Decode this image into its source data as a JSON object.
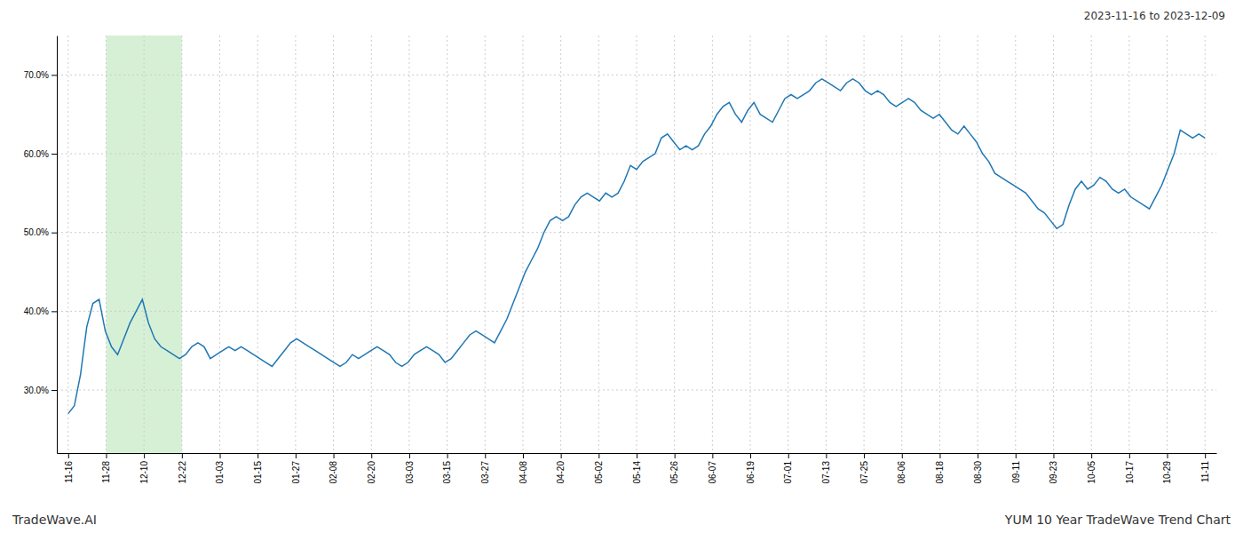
{
  "chart_data": {
    "type": "line",
    "title": "YUM 10 Year TradeWave Trend Chart",
    "subtitle": "2023-11-16 to 2023-12-09",
    "annotations": [
      "TradeWave.AI"
    ],
    "color": "#1f77b4",
    "grid": true,
    "xlim": [
      -0.3,
      30.3
    ],
    "xticks": [
      {
        "value": 0,
        "label": "11-16"
      },
      {
        "value": 1,
        "label": "11-28"
      },
      {
        "value": 2,
        "label": "12-10"
      },
      {
        "value": 3,
        "label": "12-22"
      },
      {
        "value": 4,
        "label": "01-03"
      },
      {
        "value": 5,
        "label": "01-15"
      },
      {
        "value": 6,
        "label": "01-27"
      },
      {
        "value": 7,
        "label": "02-08"
      },
      {
        "value": 8,
        "label": "02-20"
      },
      {
        "value": 9,
        "label": "03-03"
      },
      {
        "value": 10,
        "label": "03-15"
      },
      {
        "value": 11,
        "label": "03-27"
      },
      {
        "value": 12,
        "label": "04-08"
      },
      {
        "value": 13,
        "label": "04-20"
      },
      {
        "value": 14,
        "label": "05-02"
      },
      {
        "value": 15,
        "label": "05-14"
      },
      {
        "value": 16,
        "label": "05-26"
      },
      {
        "value": 17,
        "label": "06-07"
      },
      {
        "value": 18,
        "label": "06-19"
      },
      {
        "value": 19,
        "label": "07-01"
      },
      {
        "value": 20,
        "label": "07-13"
      },
      {
        "value": 21,
        "label": "07-25"
      },
      {
        "value": 22,
        "label": "08-06"
      },
      {
        "value": 23,
        "label": "08-18"
      },
      {
        "value": 24,
        "label": "08-30"
      },
      {
        "value": 25,
        "label": "09-11"
      },
      {
        "value": 26,
        "label": "09-23"
      },
      {
        "value": 27,
        "label": "10-05"
      },
      {
        "value": 28,
        "label": "10-17"
      },
      {
        "value": 29,
        "label": "10-29"
      },
      {
        "value": 30,
        "label": "11-11"
      }
    ],
    "ylim": [
      22,
      75
    ],
    "yticks": [
      {
        "value": 30,
        "label": "30.0%"
      },
      {
        "value": 40,
        "label": "40.0%"
      },
      {
        "value": 50,
        "label": "50.0%"
      },
      {
        "value": 60,
        "label": "60.0%"
      },
      {
        "value": 70,
        "label": "70.0%"
      }
    ],
    "spans": [
      {
        "x0": 1,
        "x1": 3,
        "color": "#d6f0d6"
      }
    ],
    "values": [
      27.0,
      28.0,
      32.0,
      38.0,
      41.0,
      41.5,
      37.5,
      35.5,
      34.5,
      36.5,
      38.5,
      40.0,
      41.5,
      38.5,
      36.5,
      35.5,
      35.0,
      34.5,
      34.0,
      34.5,
      35.5,
      36.0,
      35.5,
      34.0,
      34.5,
      35.0,
      35.5,
      35.0,
      35.5,
      35.0,
      34.5,
      34.0,
      33.5,
      33.0,
      34.0,
      35.0,
      36.0,
      36.5,
      36.0,
      35.5,
      35.0,
      34.5,
      34.0,
      33.5,
      33.0,
      33.5,
      34.5,
      34.0,
      34.5,
      35.0,
      35.5,
      35.0,
      34.5,
      33.5,
      33.0,
      33.5,
      34.5,
      35.0,
      35.5,
      35.0,
      34.5,
      33.5,
      34.0,
      35.0,
      36.0,
      37.0,
      37.5,
      37.0,
      36.5,
      36.0,
      37.5,
      39.0,
      41.0,
      43.0,
      45.0,
      46.5,
      48.0,
      50.0,
      51.5,
      52.0,
      51.5,
      52.0,
      53.5,
      54.5,
      55.0,
      54.5,
      54.0,
      55.0,
      54.5,
      55.0,
      56.5,
      58.5,
      58.0,
      59.0,
      59.5,
      60.0,
      62.0,
      62.5,
      61.5,
      60.5,
      61.0,
      60.5,
      61.0,
      62.5,
      63.5,
      65.0,
      66.0,
      66.5,
      65.0,
      64.0,
      65.5,
      66.5,
      65.0,
      64.5,
      64.0,
      65.5,
      67.0,
      67.5,
      67.0,
      67.5,
      68.0,
      69.0,
      69.5,
      69.0,
      68.5,
      68.0,
      69.0,
      69.5,
      69.0,
      68.0,
      67.5,
      68.0,
      67.5,
      66.5,
      66.0,
      66.5,
      67.0,
      66.5,
      65.5,
      65.0,
      64.5,
      65.0,
      64.0,
      63.0,
      62.5,
      63.5,
      62.5,
      61.5,
      60.0,
      59.0,
      57.5,
      57.0,
      56.5,
      56.0,
      55.5,
      55.0,
      54.0,
      53.0,
      52.5,
      51.5,
      50.5,
      51.0,
      53.5,
      55.5,
      56.5,
      55.5,
      56.0,
      57.0,
      56.5,
      55.5,
      55.0,
      55.5,
      54.5,
      54.0,
      53.5,
      53.0,
      54.5,
      56.0,
      58.0,
      60.0,
      63.0,
      62.5,
      62.0,
      62.5,
      62.0
    ]
  }
}
